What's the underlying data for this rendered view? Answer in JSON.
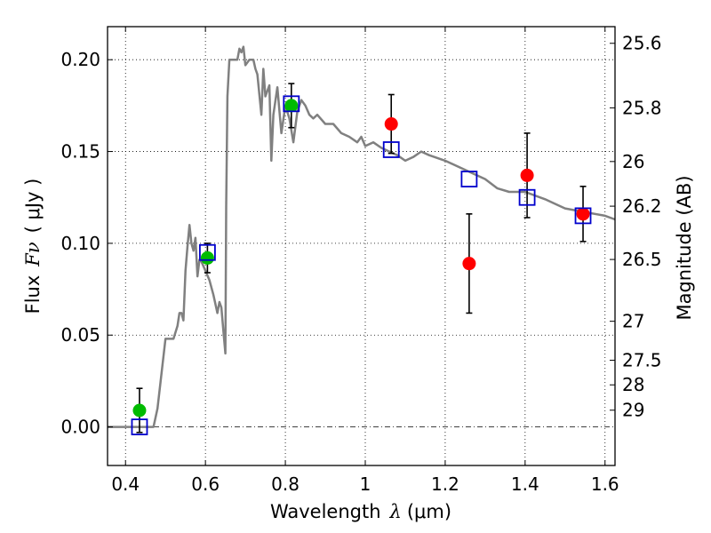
{
  "chart_data": {
    "type": "scatter",
    "xlabel": "Wavelength",
    "xlabel_symbol": "λ",
    "xlabel_unit": "(μm)",
    "ylabel": "Flux",
    "ylabel_symbol": "Fν",
    "ylabel_unit": "( μJy )",
    "y2label": "Magnitude (AB)",
    "xlim": [
      0.355,
      1.625
    ],
    "ylim": [
      -0.021,
      0.218
    ],
    "grid": true,
    "x_ticks": [
      {
        "value": 0.4,
        "label": "0.4"
      },
      {
        "value": 0.6,
        "label": "0.6"
      },
      {
        "value": 0.8,
        "label": "0.8"
      },
      {
        "value": 1.0,
        "label": "1"
      },
      {
        "value": 1.2,
        "label": "1.2"
      },
      {
        "value": 1.4,
        "label": "1.4"
      },
      {
        "value": 1.6,
        "label": "1.6"
      }
    ],
    "y_ticks": [
      {
        "value": 0.0,
        "label": "0.00"
      },
      {
        "value": 0.05,
        "label": "0.05"
      },
      {
        "value": 0.1,
        "label": "0.10"
      },
      {
        "value": 0.15,
        "label": "0.15"
      },
      {
        "value": 0.2,
        "label": "0.20"
      }
    ],
    "mag_ticks": [
      {
        "value": 25.6,
        "label": "25.6"
      },
      {
        "value": 25.8,
        "label": "25.8"
      },
      {
        "value": 26.0,
        "label": "26"
      },
      {
        "value": 26.2,
        "label": "26.2"
      },
      {
        "value": 26.5,
        "label": "26.5"
      },
      {
        "value": 27.0,
        "label": "27"
      },
      {
        "value": 27.5,
        "label": "27.5"
      },
      {
        "value": 28.0,
        "label": "28"
      },
      {
        "value": 29.0,
        "label": "29"
      }
    ],
    "series": [
      {
        "name": "model-spectrum",
        "kind": "line",
        "color": "#808080",
        "x": [
          0.355,
          0.47,
          0.48,
          0.5,
          0.52,
          0.53,
          0.535,
          0.54,
          0.545,
          0.55,
          0.555,
          0.56,
          0.565,
          0.57,
          0.575,
          0.58,
          0.585,
          0.59,
          0.6,
          0.61,
          0.62,
          0.63,
          0.635,
          0.64,
          0.645,
          0.65,
          0.652,
          0.655,
          0.66,
          0.67,
          0.68,
          0.685,
          0.69,
          0.695,
          0.7,
          0.71,
          0.72,
          0.725,
          0.73,
          0.74,
          0.745,
          0.75,
          0.76,
          0.765,
          0.77,
          0.78,
          0.79,
          0.8,
          0.81,
          0.82,
          0.83,
          0.84,
          0.85,
          0.86,
          0.87,
          0.88,
          0.9,
          0.92,
          0.94,
          0.96,
          0.98,
          0.99,
          1.0,
          1.02,
          1.04,
          1.06,
          1.08,
          1.1,
          1.12,
          1.14,
          1.16,
          1.2,
          1.25,
          1.3,
          1.33,
          1.36,
          1.4,
          1.45,
          1.48,
          1.5,
          1.55,
          1.6,
          1.625
        ],
        "y": [
          0.0,
          0.0,
          0.01,
          0.048,
          0.048,
          0.055,
          0.062,
          0.062,
          0.058,
          0.085,
          0.098,
          0.11,
          0.1,
          0.096,
          0.103,
          0.082,
          0.091,
          0.09,
          0.085,
          0.08,
          0.072,
          0.062,
          0.068,
          0.065,
          0.052,
          0.04,
          0.12,
          0.18,
          0.2,
          0.2,
          0.2,
          0.206,
          0.204,
          0.207,
          0.197,
          0.2,
          0.2,
          0.195,
          0.192,
          0.17,
          0.195,
          0.18,
          0.186,
          0.145,
          0.17,
          0.185,
          0.16,
          0.175,
          0.168,
          0.155,
          0.172,
          0.178,
          0.175,
          0.17,
          0.168,
          0.17,
          0.165,
          0.165,
          0.16,
          0.158,
          0.155,
          0.158,
          0.153,
          0.155,
          0.152,
          0.15,
          0.148,
          0.145,
          0.147,
          0.15,
          0.148,
          0.145,
          0.14,
          0.135,
          0.13,
          0.128,
          0.128,
          0.124,
          0.121,
          0.119,
          0.117,
          0.115,
          0.113
        ]
      },
      {
        "name": "observed-green",
        "kind": "points",
        "marker": "circle",
        "color": "#00bb00",
        "x": [
          0.435,
          0.605,
          0.815
        ],
        "y": [
          0.009,
          0.092,
          0.175
        ],
        "yerr": [
          0.012,
          0.008,
          0.012
        ]
      },
      {
        "name": "observed-red",
        "kind": "points",
        "marker": "circle",
        "color": "#ff0000",
        "x": [
          1.065,
          1.26,
          1.405,
          1.545
        ],
        "y": [
          0.165,
          0.089,
          0.137,
          0.116
        ],
        "yerr": [
          0.016,
          0.027,
          0.023,
          0.015
        ]
      },
      {
        "name": "model-photometry",
        "kind": "points",
        "marker": "open-square",
        "color": "#0000cc",
        "x": [
          0.435,
          0.605,
          0.815,
          1.065,
          1.26,
          1.405,
          1.545
        ],
        "y": [
          0.0,
          0.095,
          0.176,
          0.151,
          0.135,
          0.125,
          0.115
        ]
      }
    ]
  }
}
